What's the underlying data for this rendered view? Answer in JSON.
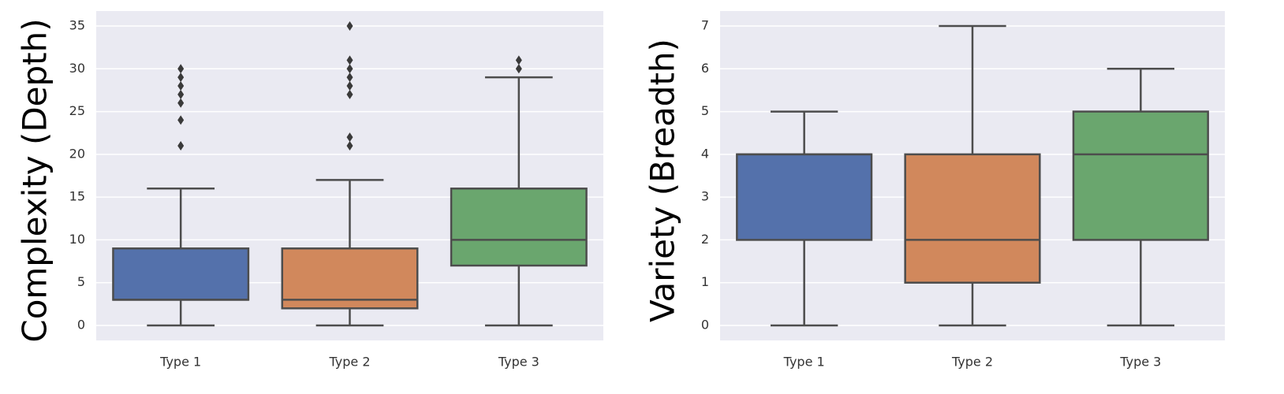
{
  "chart_data": [
    {
      "type": "box",
      "y_label": "Complexity (Depth)",
      "categories": [
        "Type 1",
        "Type 2",
        "Type 3"
      ],
      "colors": [
        "#5471ab",
        "#d1885c",
        "#6aa66e"
      ],
      "boxes": [
        {
          "whislo": 0,
          "q1": 3,
          "med": 3,
          "q3": 9,
          "whishi": 16,
          "fliers": [
            21,
            24,
            26,
            27,
            28,
            29,
            30
          ]
        },
        {
          "whislo": 0,
          "q1": 2,
          "med": 3,
          "q3": 9,
          "whishi": 17,
          "fliers": [
            21,
            22,
            27,
            28,
            29,
            30,
            31,
            35
          ]
        },
        {
          "whislo": 0,
          "q1": 7,
          "med": 10,
          "q3": 16,
          "whishi": 29,
          "fliers": [
            30,
            31
          ]
        }
      ],
      "ylim": [
        -1.75,
        36.75
      ],
      "yticks": [
        0,
        5,
        10,
        15,
        20,
        25,
        30,
        35
      ],
      "grid": true
    },
    {
      "type": "box",
      "y_label": "Variety (Breadth)",
      "categories": [
        "Type 1",
        "Type 2",
        "Type 3"
      ],
      "colors": [
        "#5471ab",
        "#d1885c",
        "#6aa66e"
      ],
      "boxes": [
        {
          "whislo": 0,
          "q1": 2,
          "med": 4,
          "q3": 4,
          "whishi": 5,
          "fliers": []
        },
        {
          "whislo": 0,
          "q1": 1,
          "med": 2,
          "q3": 4,
          "whishi": 7,
          "fliers": []
        },
        {
          "whislo": 0,
          "q1": 2,
          "med": 4,
          "q3": 5,
          "whishi": 6,
          "fliers": []
        }
      ],
      "ylim": [
        -0.35,
        7.35
      ],
      "yticks": [
        0,
        1,
        2,
        3,
        4,
        5,
        6,
        7
      ],
      "grid": true
    }
  ]
}
